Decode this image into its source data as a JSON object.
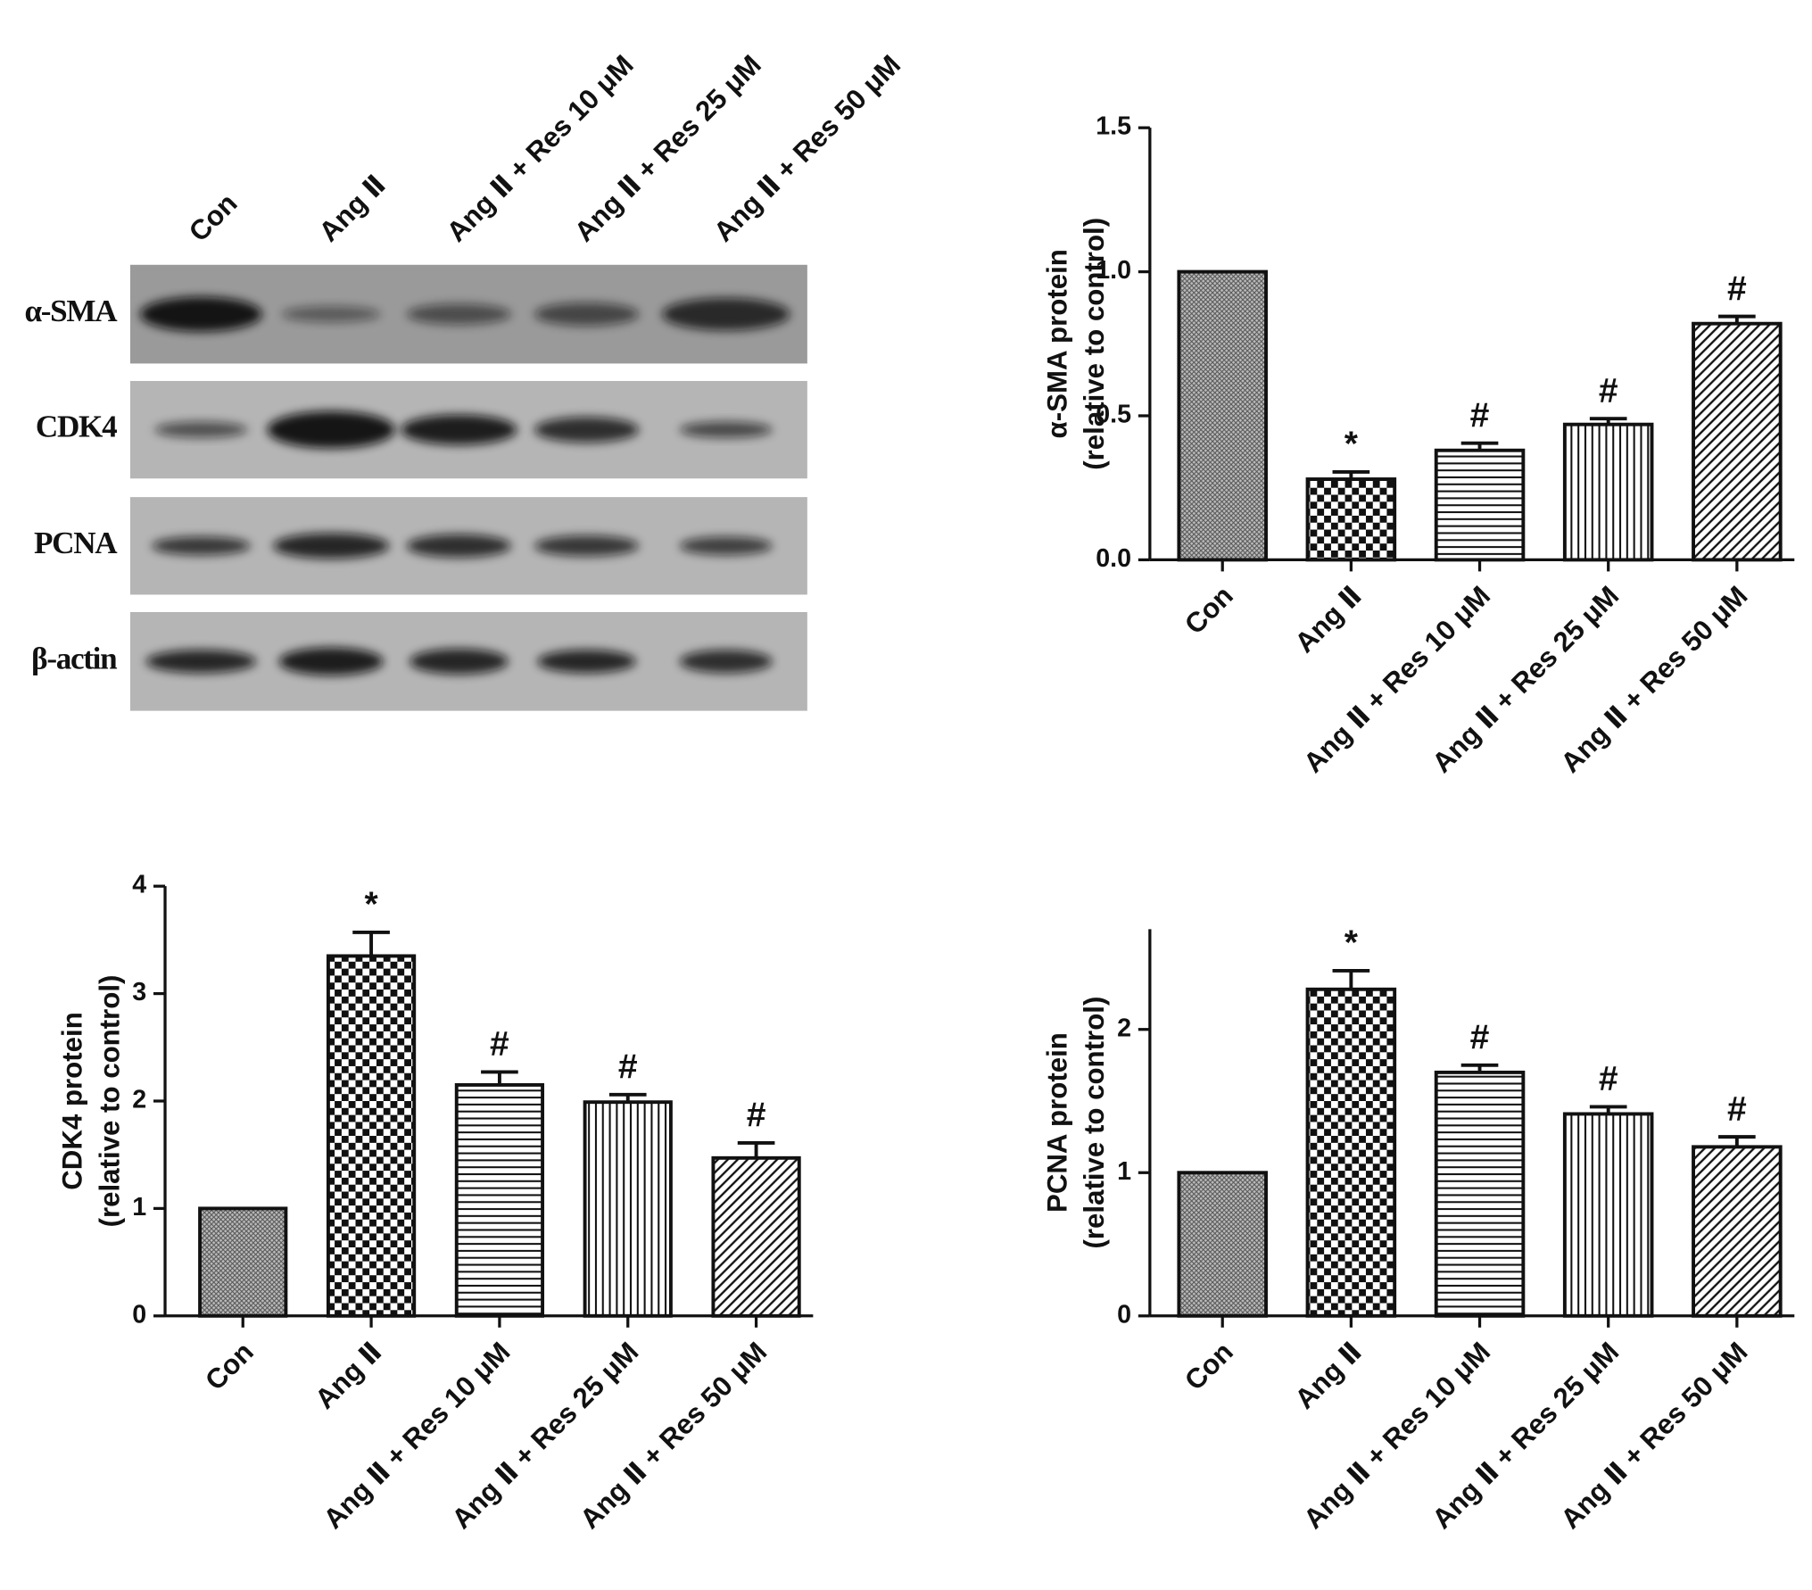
{
  "blot": {
    "lanes": [
      "Con",
      "Ang Ⅱ",
      "Ang Ⅱ + Res 10 μM",
      "Ang Ⅱ + Res 25 μM",
      "Ang Ⅱ + Res 50 μM"
    ],
    "rows": [
      "α-SMA",
      "CDK4",
      "PCNA",
      "β-actin"
    ]
  },
  "chart_data": [
    {
      "type": "bar",
      "ylabel": [
        "α-SMA protein",
        "(relative to control)"
      ],
      "categories": [
        "Con",
        "Ang Ⅱ",
        "Ang Ⅱ + Res 10 μM",
        "Ang Ⅱ + Res 25 μM",
        "Ang Ⅱ + Res 50 μM"
      ],
      "values": [
        1.0,
        0.28,
        0.38,
        0.47,
        0.82
      ],
      "errors": [
        0,
        0.025,
        0.025,
        0.02,
        0.025
      ],
      "annotations": [
        null,
        "*",
        "#",
        "#",
        "#"
      ],
      "patterns": [
        "crosshatch",
        "checker",
        "horizontal",
        "vertical",
        "diagonal"
      ],
      "ylim": [
        0,
        1.5
      ],
      "yticks": [
        {
          "value": 0,
          "label": "0.0"
        },
        0.5,
        {
          "value": 1,
          "label": "1.0"
        },
        1.5
      ]
    },
    {
      "type": "bar",
      "ylabel": [
        "CDK4 protein",
        "(relative to control)"
      ],
      "categories": [
        "Con",
        "Ang Ⅱ",
        "Ang Ⅱ + Res 10 μM",
        "Ang Ⅱ + Res 25 μM",
        "Ang Ⅱ + Res 50 μM"
      ],
      "values": [
        1.0,
        3.35,
        2.15,
        1.99,
        1.47
      ],
      "errors": [
        0,
        0.22,
        0.12,
        0.07,
        0.14
      ],
      "annotations": [
        null,
        "*",
        "#",
        "#",
        "#"
      ],
      "patterns": [
        "crosshatch",
        "checker",
        "horizontal",
        "vertical",
        "diagonal"
      ],
      "ylim": [
        0,
        4
      ],
      "yticks": [
        0,
        1,
        2,
        3,
        4
      ]
    },
    {
      "type": "bar",
      "ylabel": [
        "PCNA protein",
        "(relative to control)"
      ],
      "categories": [
        "Con",
        "Ang Ⅱ",
        "Ang Ⅱ + Res 10 μM",
        "Ang Ⅱ + Res 25 μM",
        "Ang Ⅱ + Res 50 μM"
      ],
      "values": [
        1.0,
        2.28,
        1.7,
        1.41,
        1.18
      ],
      "errors": [
        0,
        0.13,
        0.05,
        0.05,
        0.07
      ],
      "annotations": [
        null,
        "*",
        "#",
        "#",
        "#"
      ],
      "patterns": [
        "crosshatch",
        "checker",
        "horizontal",
        "vertical",
        "diagonal"
      ],
      "ylim": [
        0,
        2.7
      ],
      "yticks": [
        0,
        1,
        2
      ]
    }
  ]
}
